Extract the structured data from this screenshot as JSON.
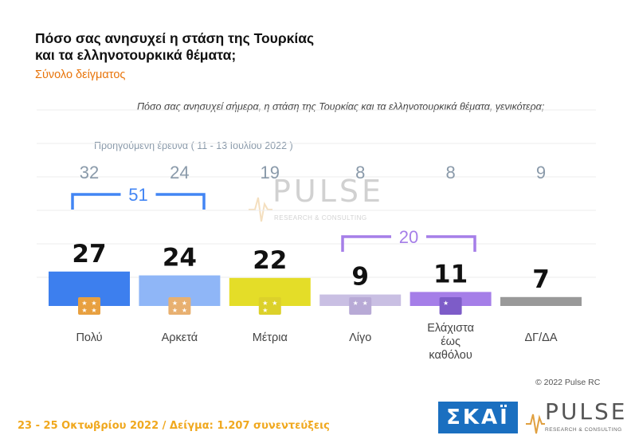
{
  "header": {
    "title_line1": "Πόσο σας ανησυχεί η στάση της Τουρκίας",
    "title_line2": "και τα ελληνοτουρκικά θέματα;",
    "subtitle": "Σύνολο δείγματος"
  },
  "question": "Πόσο σας ανησυχεί σήμερα, η στάση της Τουρκίας και τα ελληνοτουρκικά θέματα, γενικότερα;",
  "previous_label": "Προηγούμενη έρευνα  ( 11 - 13 Ιουλίου  2022 )",
  "groups": [
    {
      "label": "51",
      "color": "#4285f4"
    },
    {
      "label": "20",
      "color": "#a57ee8"
    }
  ],
  "chart_data": {
    "type": "bar",
    "categories": [
      "Πολύ",
      "Αρκετά",
      "Μέτρια",
      "Λίγο",
      "Ελάχιστα έως καθόλου",
      "ΔΓ/ΔΑ"
    ],
    "category_lines": [
      [
        "Πολύ"
      ],
      [
        "Αρκετά"
      ],
      [
        "Μέτρια"
      ],
      [
        "Λίγο"
      ],
      [
        "Ελάχιστα",
        "έως",
        "καθόλου"
      ],
      [
        "ΔΓ/ΔΑ"
      ]
    ],
    "values": [
      27,
      24,
      22,
      9,
      11,
      7
    ],
    "previous_values": [
      32,
      24,
      19,
      8,
      8,
      9
    ],
    "colors": [
      "#3d7fee",
      "#8fb6f7",
      "#e4dd28",
      "#c9bfe3",
      "#a57ee8",
      "#999999"
    ],
    "ylim": [
      0,
      100
    ]
  },
  "copyright": "© 2022 Pulse RC",
  "footer": "23 - 25  Οκτωβρίου  2022  /  Δείγμα:  1.207 συνεντεύξεις",
  "logos": {
    "skai": "ΣΚΑΪ",
    "pulse": "PULSE",
    "pulse_tagline": "RESEARCH & CONSULTING"
  }
}
